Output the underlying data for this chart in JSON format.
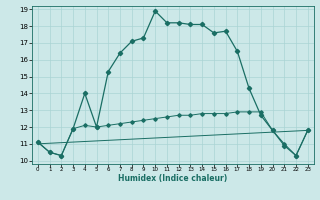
{
  "xlabel": "Humidex (Indice chaleur)",
  "xlim": [
    -0.5,
    23.5
  ],
  "ylim": [
    9.8,
    19.2
  ],
  "yticks": [
    10,
    11,
    12,
    13,
    14,
    15,
    16,
    17,
    18,
    19
  ],
  "xticks": [
    0,
    1,
    2,
    3,
    4,
    5,
    6,
    7,
    8,
    9,
    10,
    11,
    12,
    13,
    14,
    15,
    16,
    17,
    18,
    19,
    20,
    21,
    22,
    23
  ],
  "bg_color": "#cce8e8",
  "line_color": "#1a6e64",
  "line1_x": [
    0,
    1,
    2,
    3,
    4,
    5,
    6,
    7,
    8,
    9,
    10,
    11,
    12,
    13,
    14,
    15,
    16,
    17,
    18,
    19,
    20,
    21,
    22,
    23
  ],
  "line1_y": [
    11.1,
    10.5,
    10.3,
    11.9,
    14.0,
    12.0,
    15.3,
    16.4,
    17.1,
    17.3,
    18.9,
    18.2,
    18.2,
    18.1,
    18.1,
    17.6,
    17.7,
    16.5,
    14.3,
    12.7,
    11.8,
    10.9,
    10.3,
    11.8
  ],
  "line2_x": [
    0,
    1,
    2,
    3,
    4,
    5,
    6,
    7,
    8,
    9,
    10,
    11,
    12,
    13,
    14,
    15,
    16,
    17,
    18,
    19,
    20,
    21,
    22,
    23
  ],
  "line2_y": [
    11.1,
    10.5,
    10.3,
    11.9,
    12.1,
    12.0,
    12.1,
    12.2,
    12.3,
    12.4,
    12.5,
    12.6,
    12.7,
    12.7,
    12.8,
    12.8,
    12.8,
    12.9,
    12.9,
    12.9,
    11.8,
    11.0,
    10.3,
    11.8
  ],
  "line3_x": [
    0,
    23
  ],
  "line3_y": [
    11.0,
    11.8
  ],
  "grid_color": "#aad4d4",
  "spine_color": "#1a6e64"
}
